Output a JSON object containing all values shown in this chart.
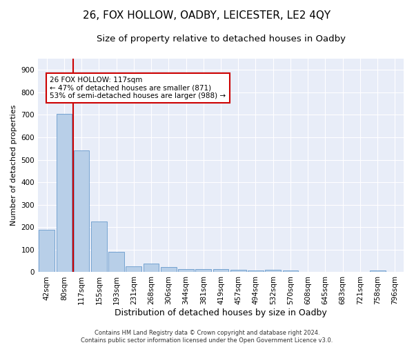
{
  "title1": "26, FOX HOLLOW, OADBY, LEICESTER, LE2 4QY",
  "title2": "Size of property relative to detached houses in Oadby",
  "xlabel": "Distribution of detached houses by size in Oadby",
  "ylabel": "Number of detached properties",
  "categories": [
    "42sqm",
    "80sqm",
    "117sqm",
    "155sqm",
    "193sqm",
    "231sqm",
    "268sqm",
    "306sqm",
    "344sqm",
    "381sqm",
    "419sqm",
    "457sqm",
    "494sqm",
    "532sqm",
    "570sqm",
    "608sqm",
    "645sqm",
    "683sqm",
    "721sqm",
    "758sqm",
    "796sqm"
  ],
  "values": [
    190,
    705,
    543,
    224,
    91,
    27,
    37,
    24,
    15,
    13,
    13,
    11,
    9,
    10,
    8,
    0,
    0,
    0,
    0,
    9,
    0
  ],
  "bar_color": "#b8cfe8",
  "bar_edgecolor": "#6699cc",
  "vline_color": "#cc0000",
  "annotation_text": "26 FOX HOLLOW: 117sqm\n← 47% of detached houses are smaller (871)\n53% of semi-detached houses are larger (988) →",
  "annotation_box_color": "#ffffff",
  "annotation_box_edgecolor": "#cc0000",
  "ylim": [
    0,
    950
  ],
  "yticks": [
    0,
    100,
    200,
    300,
    400,
    500,
    600,
    700,
    800,
    900
  ],
  "bg_color": "#e8edf8",
  "footer_text": "Contains HM Land Registry data © Crown copyright and database right 2024.\nContains public sector information licensed under the Open Government Licence v3.0.",
  "title1_fontsize": 11,
  "title2_fontsize": 9.5,
  "xlabel_fontsize": 9,
  "ylabel_fontsize": 8,
  "tick_fontsize": 7.5,
  "footer_fontsize": 6,
  "annotation_fontsize": 7.5
}
